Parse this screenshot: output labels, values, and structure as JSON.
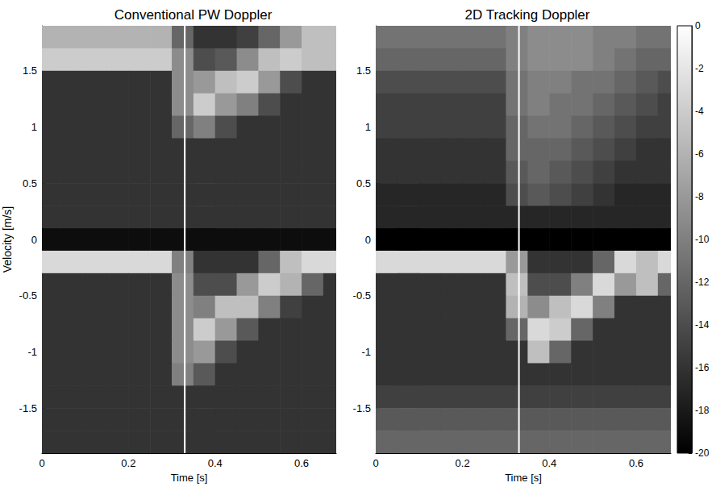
{
  "chart_data": [
    {
      "type": "heatmap",
      "title": "Conventional PW Doppler",
      "x_label": "Time [s]",
      "y_label": "Velocity [m/s]",
      "xlim": [
        0,
        0.68
      ],
      "ylim": [
        -1.9,
        1.9
      ],
      "xticks": [
        0,
        0.2,
        0.4,
        0.6
      ],
      "yticks": [
        -1.5,
        -1,
        -0.5,
        0,
        0.5,
        1,
        1.5
      ],
      "marker_time": 0.33,
      "t_edges": [
        0,
        0.05,
        0.1,
        0.15,
        0.2,
        0.25,
        0.3,
        0.35,
        0.4,
        0.45,
        0.5,
        0.55,
        0.6,
        0.65,
        0.7
      ],
      "v_edges": [
        1.9,
        1.7,
        1.5,
        1.3,
        1.1,
        0.9,
        0.7,
        0.5,
        0.3,
        0.1,
        -0.1,
        -0.3,
        -0.5,
        -0.7,
        -0.9,
        -1.1,
        -1.3,
        -1.5,
        -1.7,
        -1.9
      ],
      "z": [
        [
          -6,
          -6,
          -6,
          -6,
          -6,
          -6,
          -12,
          -16,
          -16,
          -15,
          -12,
          -8,
          -5,
          -5
        ],
        [
          -4,
          -4,
          -4,
          -4,
          -4,
          -4,
          -9,
          -14,
          -13,
          -9,
          -5,
          -4,
          -5,
          -5
        ],
        [
          -16,
          -16,
          -16,
          -16,
          -16,
          -16,
          -9,
          -8,
          -5,
          -4,
          -8,
          -14,
          -16,
          -16
        ],
        [
          -16,
          -16,
          -16,
          -16,
          -16,
          -16,
          -9,
          -4,
          -8,
          -10,
          -14,
          -16,
          -16,
          -16
        ],
        [
          -16,
          -16,
          -16,
          -16,
          -16,
          -16,
          -12,
          -10,
          -14,
          -16,
          -16,
          -16,
          -16,
          -16
        ],
        [
          -16,
          -16,
          -16,
          -16,
          -16,
          -16,
          -16,
          -16,
          -16,
          -16,
          -16,
          -16,
          -16,
          -16
        ],
        [
          -16,
          -16,
          -16,
          -16,
          -16,
          -16,
          -16,
          -16,
          -16,
          -16,
          -16,
          -16,
          -16,
          -16
        ],
        [
          -16,
          -16,
          -16,
          -16,
          -16,
          -16,
          -16,
          -16,
          -16,
          -16,
          -16,
          -16,
          -16,
          -16
        ],
        [
          -16,
          -16,
          -16,
          -16,
          -16,
          -16,
          -16,
          -16,
          -16,
          -16,
          -16,
          -16,
          -16,
          -16
        ],
        [
          -19,
          -19,
          -19,
          -19,
          -19,
          -19,
          -19,
          -19,
          -19,
          -19,
          -19,
          -19,
          -19,
          -19
        ],
        [
          -3,
          -3,
          -3,
          -3,
          -3,
          -3,
          -10,
          -16,
          -16,
          -16,
          -12,
          -5,
          -3,
          -3
        ],
        [
          -16,
          -16,
          -16,
          -16,
          -16,
          -16,
          -9,
          -14,
          -14,
          -8,
          -4,
          -6,
          -12,
          -16
        ],
        [
          -16,
          -16,
          -16,
          -16,
          -16,
          -16,
          -9,
          -10,
          -5,
          -5,
          -10,
          -15,
          -16,
          -16
        ],
        [
          -16,
          -16,
          -16,
          -16,
          -16,
          -16,
          -9,
          -4,
          -8,
          -13,
          -16,
          -16,
          -16,
          -16
        ],
        [
          -16,
          -16,
          -16,
          -16,
          -16,
          -16,
          -9,
          -8,
          -14,
          -16,
          -16,
          -16,
          -16,
          -16
        ],
        [
          -16,
          -16,
          -16,
          -16,
          -16,
          -16,
          -10,
          -13,
          -16,
          -16,
          -16,
          -16,
          -16,
          -16
        ],
        [
          -16,
          -16,
          -16,
          -16,
          -16,
          -16,
          -16,
          -16,
          -16,
          -16,
          -16,
          -16,
          -16,
          -16
        ],
        [
          -16,
          -16,
          -16,
          -16,
          -16,
          -16,
          -16,
          -16,
          -16,
          -16,
          -16,
          -16,
          -16,
          -16
        ],
        [
          -16,
          -16,
          -16,
          -16,
          -16,
          -16,
          -16,
          -16,
          -16,
          -16,
          -16,
          -16,
          -16,
          -16
        ]
      ]
    },
    {
      "type": "heatmap",
      "title": "2D Tracking Doppler",
      "x_label": "Time [s]",
      "xlim": [
        0,
        0.68
      ],
      "ylim": [
        -1.9,
        1.9
      ],
      "xticks": [
        0,
        0.2,
        0.4,
        0.6
      ],
      "yticks": [
        -1.5,
        -1,
        -0.5,
        0,
        0.5,
        1,
        1.5
      ],
      "marker_time": 0.33,
      "t_edges": [
        0,
        0.05,
        0.1,
        0.15,
        0.2,
        0.25,
        0.3,
        0.35,
        0.4,
        0.45,
        0.5,
        0.55,
        0.6,
        0.65,
        0.7
      ],
      "v_edges": [
        1.9,
        1.7,
        1.5,
        1.3,
        1.1,
        0.9,
        0.7,
        0.5,
        0.3,
        0.1,
        -0.1,
        -0.3,
        -0.5,
        -0.7,
        -0.9,
        -1.1,
        -1.3,
        -1.5,
        -1.7,
        -1.9
      ],
      "z": [
        [
          -11,
          -11,
          -11,
          -11,
          -11,
          -11,
          -10,
          -9,
          -9,
          -9,
          -10,
          -10,
          -11,
          -11
        ],
        [
          -12,
          -12,
          -12,
          -12,
          -12,
          -12,
          -10,
          -9,
          -9,
          -9,
          -10,
          -11,
          -12,
          -12
        ],
        [
          -14,
          -14,
          -14,
          -14,
          -14,
          -14,
          -11,
          -10,
          -10,
          -11,
          -11,
          -12,
          -13,
          -14
        ],
        [
          -15,
          -15,
          -15,
          -15,
          -15,
          -15,
          -11,
          -10,
          -11,
          -11,
          -12,
          -13,
          -14,
          -15
        ],
        [
          -15,
          -15,
          -15,
          -15,
          -15,
          -15,
          -12,
          -11,
          -11,
          -12,
          -13,
          -14,
          -15,
          -15
        ],
        [
          -16,
          -16,
          -16,
          -16,
          -16,
          -16,
          -12,
          -12,
          -12,
          -13,
          -14,
          -15,
          -16,
          -16
        ],
        [
          -16,
          -16,
          -16,
          -16,
          -16,
          -16,
          -13,
          -12,
          -13,
          -14,
          -15,
          -16,
          -16,
          -16
        ],
        [
          -17,
          -17,
          -17,
          -17,
          -17,
          -17,
          -14,
          -13,
          -14,
          -15,
          -16,
          -17,
          -17,
          -17
        ],
        [
          -17,
          -17,
          -17,
          -17,
          -17,
          -17,
          -17,
          -17,
          -17,
          -17,
          -17,
          -17,
          -17,
          -17
        ],
        [
          -20,
          -20,
          -20,
          -20,
          -20,
          -20,
          -20,
          -20,
          -20,
          -20,
          -20,
          -20,
          -20,
          -20
        ],
        [
          -3,
          -3,
          -3,
          -3,
          -3,
          -3,
          -8,
          -16,
          -16,
          -16,
          -12,
          -3,
          -5,
          -3
        ],
        [
          -16,
          -16,
          -16,
          -16,
          -16,
          -16,
          -5,
          -14,
          -14,
          -10,
          -3,
          -8,
          -5,
          -12
        ],
        [
          -16,
          -16,
          -16,
          -16,
          -16,
          -16,
          -6,
          -9,
          -5,
          -3,
          -10,
          -16,
          -16,
          -16
        ],
        [
          -16,
          -16,
          -16,
          -16,
          -16,
          -16,
          -12,
          -3,
          -4,
          -12,
          -16,
          -16,
          -16,
          -16
        ],
        [
          -16,
          -16,
          -16,
          -16,
          -16,
          -16,
          -16,
          -5,
          -12,
          -16,
          -16,
          -16,
          -16,
          -16
        ],
        [
          -16,
          -16,
          -16,
          -16,
          -16,
          -16,
          -16,
          -16,
          -16,
          -16,
          -16,
          -16,
          -16,
          -16
        ],
        [
          -15,
          -15,
          -15,
          -15,
          -15,
          -15,
          -15,
          -15,
          -15,
          -15,
          -15,
          -15,
          -15,
          -15
        ],
        [
          -13,
          -13,
          -13,
          -13,
          -13,
          -13,
          -13,
          -13,
          -13,
          -13,
          -13,
          -13,
          -13,
          -13
        ],
        [
          -12,
          -12,
          -12,
          -12,
          -12,
          -12,
          -12,
          -12,
          -12,
          -12,
          -12,
          -12,
          -12,
          -12
        ]
      ],
      "colorbar": {
        "range": [
          -20,
          0
        ],
        "ticks": [
          0,
          -2,
          -4,
          -6,
          -8,
          -10,
          -12,
          -14,
          -16,
          -18,
          -20
        ]
      }
    }
  ]
}
